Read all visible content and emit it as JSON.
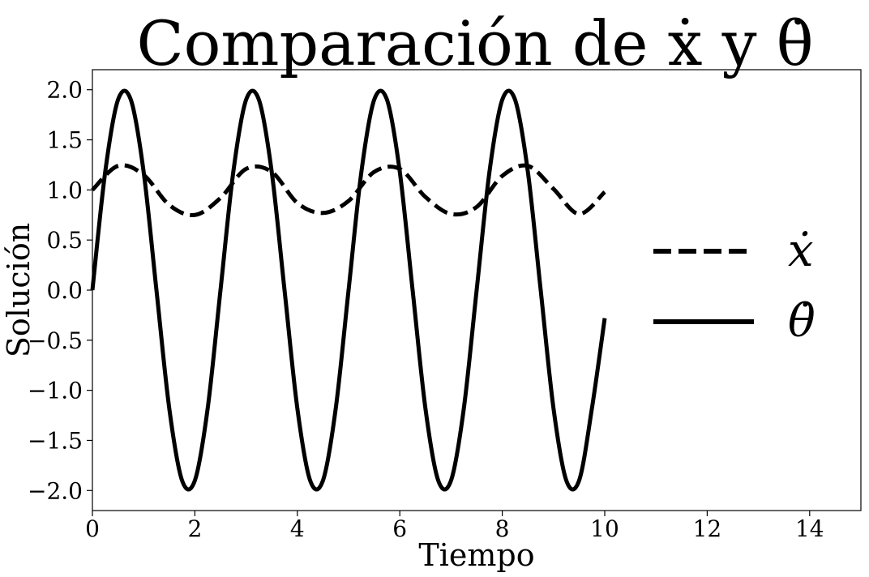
{
  "chart_data": {
    "type": "line",
    "title": "Comparación de ẋ y θ̇",
    "xlabel": "Tiempo",
    "ylabel": "Solución",
    "xlim": [
      0,
      15
    ],
    "ylim": [
      -2.2,
      2.2
    ],
    "xticks": [
      0,
      2,
      4,
      6,
      8,
      10,
      12,
      14
    ],
    "xtick_labels": [
      "0",
      "2",
      "4",
      "6",
      "8",
      "10",
      "12",
      "14"
    ],
    "yticks": [
      2.0,
      1.5,
      1.0,
      0.5,
      0.0,
      -0.5,
      -1.0,
      -1.5,
      -2.0
    ],
    "ytick_labels": [
      "2.0",
      "1.5",
      "1.0",
      "0.5",
      "0.0",
      "−0.5",
      "−1.0",
      "−1.5",
      "−2.0"
    ],
    "grid": false,
    "legend_position": "right",
    "series": [
      {
        "name": "ẋ",
        "style": "dashed",
        "color": "#000000",
        "x": [
          0,
          0.5,
          1,
          1.5,
          2,
          2.5,
          3,
          3.5,
          4,
          4.5,
          5,
          5.5,
          6,
          6.5,
          7,
          7.5,
          8,
          8.5,
          9,
          9.5,
          10
        ],
        "y": [
          1.0,
          1.24,
          1.15,
          0.85,
          0.75,
          0.92,
          1.21,
          1.18,
          0.87,
          0.77,
          0.89,
          1.18,
          1.21,
          0.93,
          0.76,
          0.83,
          1.14,
          1.24,
          1.01,
          0.76,
          0.98
        ]
      },
      {
        "name": "θ̇",
        "style": "solid",
        "color": "#000000",
        "x": [
          0,
          0.25,
          0.5,
          0.75,
          1,
          1.25,
          1.5,
          1.75,
          2,
          2.25,
          2.5,
          2.75,
          3,
          3.25,
          3.5,
          3.75,
          4,
          4.25,
          4.5,
          4.75,
          5,
          5.25,
          5.5,
          5.75,
          6,
          6.25,
          6.5,
          6.75,
          7,
          7.25,
          7.5,
          7.75,
          8,
          8.25,
          8.5,
          8.75,
          9,
          9.25,
          9.5,
          9.75,
          10
        ],
        "y": [
          0.0,
          1.18,
          1.9,
          1.9,
          1.18,
          0.0,
          -1.18,
          -1.9,
          -1.9,
          -1.18,
          0.0,
          1.18,
          1.9,
          1.9,
          1.18,
          0.0,
          -1.18,
          -1.9,
          -1.9,
          -1.18,
          0.0,
          1.18,
          1.9,
          1.9,
          1.18,
          0.0,
          -1.18,
          -1.9,
          -1.9,
          -1.18,
          0.0,
          1.18,
          1.9,
          1.9,
          1.18,
          0.0,
          -1.18,
          -1.9,
          -1.9,
          -1.18,
          -0.28
        ]
      }
    ]
  }
}
